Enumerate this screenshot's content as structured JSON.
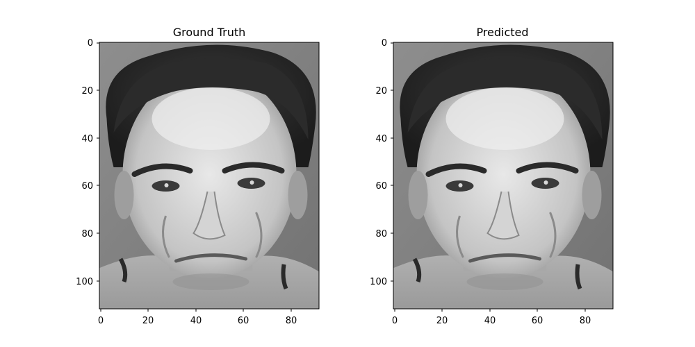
{
  "figure": {
    "background": "#ffffff",
    "panels": [
      {
        "title": "Ground Truth",
        "image_kind": "grayscale face photo",
        "x_ticks": [
          "0",
          "20",
          "40",
          "60",
          "80"
        ],
        "y_ticks": [
          "0",
          "20",
          "40",
          "60",
          "80",
          "100"
        ]
      },
      {
        "title": "Predicted",
        "image_kind": "grayscale face photo",
        "x_ticks": [
          "0",
          "20",
          "40",
          "60",
          "80"
        ],
        "y_ticks": [
          "0",
          "20",
          "40",
          "60",
          "80",
          "100"
        ]
      }
    ]
  }
}
